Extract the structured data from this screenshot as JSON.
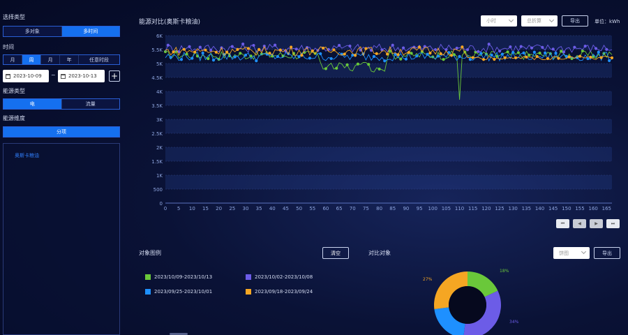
{
  "left": {
    "select_type_title": "选择类型",
    "select_type_options": [
      {
        "label": "多对象",
        "active": false
      },
      {
        "label": "多时间",
        "active": true
      }
    ],
    "period_title": "时间",
    "period_options": [
      {
        "label": "月",
        "active": false
      },
      {
        "label": "周",
        "active": true
      },
      {
        "label": "月",
        "active": false
      },
      {
        "label": "年",
        "active": false
      },
      {
        "label": "任意时段",
        "active": false
      }
    ],
    "date_start": "2023-10-09",
    "date_sep": "~",
    "date_end": "2023-10-13",
    "add_label": "+",
    "energy_type_title": "能源类型",
    "energy_type_options": [
      {
        "label": "电",
        "active": true
      },
      {
        "label": "流量",
        "active": false
      }
    ],
    "dimension_title": "能源维度",
    "dimension_option": "分项",
    "tree_item": "奥斯卡粮油"
  },
  "chart": {
    "title": "能源对比(奥斯卡粮油)",
    "interval_select": "小时",
    "analysis_select": "总折算",
    "export_label": "导出",
    "unit_label": "单位：kWh"
  },
  "chart_data": {
    "type": "line",
    "ylim": [
      0,
      6000
    ],
    "yticks": [
      "0",
      "500",
      "1K",
      "1.5K",
      "2K",
      "2.5K",
      "3K",
      "3.5K",
      "4K",
      "4.5K",
      "5K",
      "5.5K",
      "6K"
    ],
    "xlim": [
      0,
      167
    ],
    "xticks": [
      "0",
      "5",
      "10",
      "15",
      "20",
      "25",
      "30",
      "35",
      "40",
      "45",
      "50",
      "55",
      "60",
      "65",
      "70",
      "75",
      "80",
      "85",
      "90",
      "95",
      "100",
      "105",
      "110",
      "115",
      "120",
      "125",
      "130",
      "135",
      "140",
      "145",
      "150",
      "155",
      "160",
      "165"
    ],
    "series": [
      {
        "color": "#6ac83a"
      },
      {
        "color": "#6c5ce7"
      },
      {
        "color": "#1e90ff"
      },
      {
        "color": "#f5a623"
      }
    ]
  },
  "pager": [
    "⏮",
    "◀",
    "▶",
    "⏭"
  ],
  "bottom": {
    "legend_title": "对象图例",
    "clear_label": "清空",
    "compare_title": "对比对象",
    "pie_select": "饼图",
    "pie_export": "导出",
    "legend": [
      {
        "label": "2023/10/09-2023/10/13",
        "color": "#6ac83a"
      },
      {
        "label": "2023/10/02-2023/10/08",
        "color": "#6c5ce7"
      },
      {
        "label": "2023/09/25-2023/10/01",
        "color": "#1e90ff"
      },
      {
        "label": "2023/09/18-2023/09/24",
        "color": "#f5a623"
      }
    ],
    "pie": {
      "slices": [
        {
          "value": 18,
          "color": "#6ac83a",
          "label": "18%"
        },
        {
          "value": 34,
          "color": "#6c5ce7",
          "label": "34%"
        },
        {
          "value": 21,
          "color": "#1e90ff",
          "label": ""
        },
        {
          "value": 27,
          "color": "#f5a623",
          "label": "27%"
        }
      ]
    }
  }
}
